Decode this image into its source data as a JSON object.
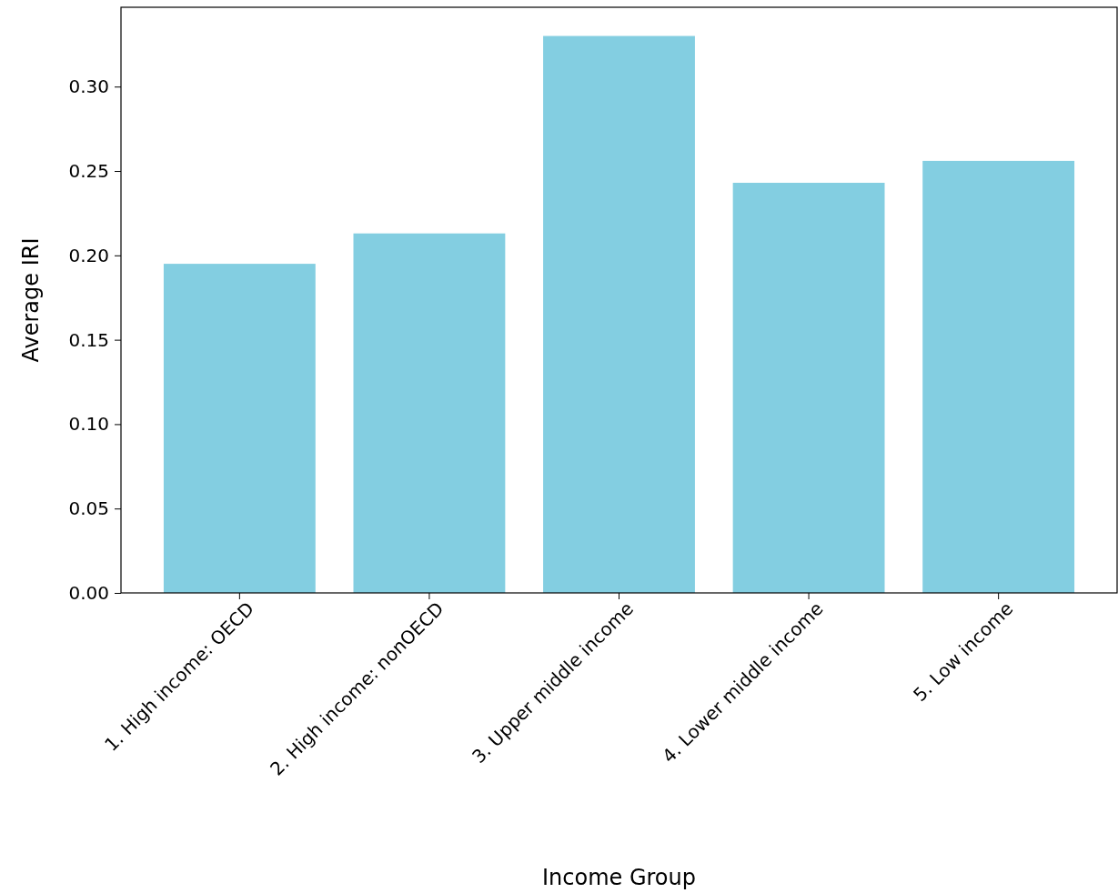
{
  "chart_data": {
    "type": "bar",
    "xlabel": "Income Group",
    "ylabel": "Average IRI",
    "categories": [
      "1. High income: OECD",
      "2. High income: nonOECD",
      "3. Upper middle income",
      "4. Lower middle income",
      "5. Low income"
    ],
    "values": [
      0.195,
      0.213,
      0.33,
      0.243,
      0.256
    ],
    "color": "#83cee1",
    "ylim": [
      0,
      0.347
    ],
    "yticks": [
      {
        "value": 0,
        "label": "0.00"
      },
      {
        "value": 0.05,
        "label": "0.05"
      },
      {
        "value": 0.1,
        "label": "0.10"
      },
      {
        "value": 0.15,
        "label": "0.15"
      },
      {
        "value": 0.2,
        "label": "0.20"
      },
      {
        "value": 0.25,
        "label": "0.25"
      },
      {
        "value": 0.3,
        "label": "0.30"
      }
    ],
    "grid": false
  }
}
